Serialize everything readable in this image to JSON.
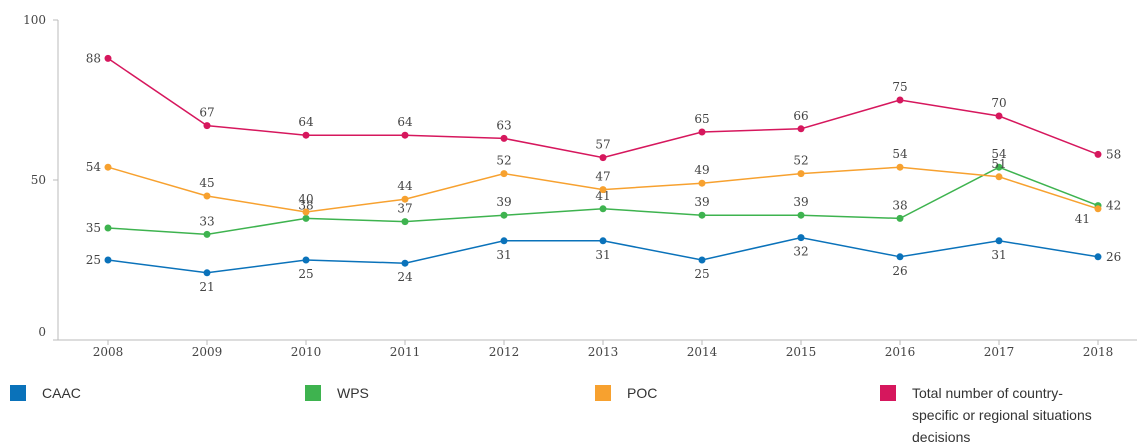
{
  "chart_data": {
    "type": "line",
    "categories": [
      "2008",
      "2009",
      "2010",
      "2011",
      "2012",
      "2013",
      "2014",
      "2015",
      "2016",
      "2017",
      "2018"
    ],
    "series": [
      {
        "name": "CAAC",
        "color": "#0a72ba",
        "values": [
          25,
          21,
          25,
          24,
          31,
          31,
          25,
          32,
          26,
          31,
          26
        ]
      },
      {
        "name": "WPS",
        "color": "#3eb34f",
        "values": [
          35,
          33,
          38,
          37,
          39,
          41,
          39,
          39,
          38,
          54,
          42
        ]
      },
      {
        "name": "POC",
        "color": "#f7a12f",
        "values": [
          54,
          45,
          40,
          44,
          52,
          47,
          49,
          52,
          54,
          51,
          41
        ]
      },
      {
        "name": "Total number of country-specific or regional situations decisions",
        "color": "#d6175d",
        "values": [
          88,
          67,
          64,
          64,
          63,
          57,
          65,
          66,
          75,
          70,
          58
        ]
      }
    ],
    "ylim": [
      0,
      100
    ],
    "yticks": [
      0,
      50,
      100
    ],
    "grid": false,
    "data_labels": true,
    "legend": "bottom"
  }
}
